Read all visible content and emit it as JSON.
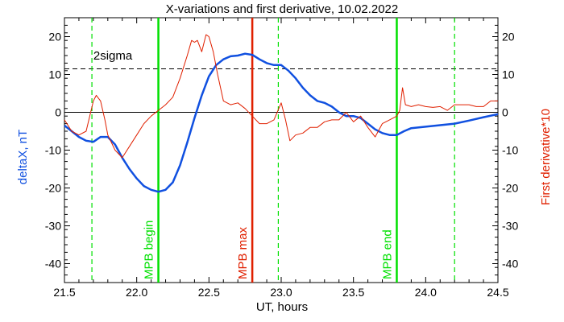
{
  "chart_data": {
    "type": "line",
    "title": "X-variations and first derivative, 10.02.2022",
    "xlabel": "UT, hours",
    "ylabel_left": "deltaX, nT",
    "ylabel_right": "First derivative*10",
    "xlim": [
      21.5,
      24.5
    ],
    "ylim": [
      -45,
      25
    ],
    "x_ticks": [
      21.5,
      22.0,
      22.5,
      23.0,
      23.5,
      24.0,
      24.5
    ],
    "x_tick_labels": [
      "21.5",
      "22.0",
      "22.5",
      "23.0",
      "23.5",
      "24.0",
      "24.5"
    ],
    "y_ticks": [
      20,
      10,
      0,
      -10,
      -20,
      -30,
      -40
    ],
    "y_tick_labels": [
      "20",
      "10",
      "0",
      "-10",
      "-20",
      "-30",
      "-40"
    ],
    "threshold": {
      "value": 11.5,
      "label": "2sigma",
      "label_x": 21.7,
      "label_y": 15
    },
    "vlines": [
      {
        "x": 22.15,
        "label": "MPB begin",
        "color": "#00e000",
        "style": "solid"
      },
      {
        "x": 22.8,
        "label": "MPB max",
        "color": "#e02000",
        "style": "solid"
      },
      {
        "x": 23.8,
        "label": "MPB end",
        "color": "#00e000",
        "style": "solid"
      },
      {
        "x": 21.69,
        "color": "#00e000",
        "style": "dashed"
      },
      {
        "x": 22.98,
        "color": "#00e000",
        "style": "dashed"
      },
      {
        "x": 24.2,
        "color": "#00e000",
        "style": "dashed"
      }
    ],
    "colors": {
      "deltaX": "#1050e0",
      "derivative": "#e02000",
      "axis_right_label": "#e02000",
      "axis_left_label": "#1050e0"
    },
    "series": [
      {
        "key": "deltaX",
        "x": [
          21.5,
          21.55,
          21.6,
          21.65,
          21.7,
          21.75,
          21.8,
          21.85,
          21.9,
          21.95,
          22.0,
          22.05,
          22.1,
          22.15,
          22.2,
          22.25,
          22.3,
          22.35,
          22.4,
          22.45,
          22.5,
          22.55,
          22.6,
          22.65,
          22.7,
          22.75,
          22.8,
          22.85,
          22.9,
          22.95,
          23.0,
          23.05,
          23.1,
          23.15,
          23.2,
          23.25,
          23.3,
          23.35,
          23.4,
          23.45,
          23.5,
          23.55,
          23.6,
          23.65,
          23.7,
          23.75,
          23.8,
          23.85,
          23.9,
          24.0,
          24.1,
          24.2,
          24.3,
          24.4,
          24.5
        ],
        "values": [
          -3.5,
          -5,
          -6.5,
          -7.5,
          -7.8,
          -6.5,
          -6.5,
          -8.5,
          -12,
          -15,
          -17.5,
          -19.5,
          -20.5,
          -21,
          -20.5,
          -18.5,
          -14,
          -8,
          -1.5,
          4.5,
          9.5,
          12.5,
          14,
          14.8,
          15,
          15.5,
          15.2,
          14,
          13,
          12.5,
          12.5,
          11,
          9,
          6.5,
          4.5,
          3,
          2.5,
          1.5,
          0,
          -1,
          -1,
          -1.5,
          -3,
          -4.5,
          -5.5,
          -6,
          -6,
          -5,
          -4.2,
          -3.8,
          -3.4,
          -3,
          -2.2,
          -1.3,
          -0.5
        ]
      },
      {
        "key": "derivative",
        "x": [
          21.5,
          21.55,
          21.6,
          21.65,
          21.7,
          21.72,
          21.75,
          21.78,
          21.8,
          21.85,
          21.9,
          21.95,
          22.0,
          22.05,
          22.1,
          22.15,
          22.2,
          22.25,
          22.3,
          22.35,
          22.38,
          22.4,
          22.42,
          22.45,
          22.48,
          22.5,
          22.53,
          22.56,
          22.6,
          22.65,
          22.7,
          22.75,
          22.8,
          22.85,
          22.9,
          22.95,
          23.0,
          23.03,
          23.06,
          23.1,
          23.15,
          23.2,
          23.25,
          23.3,
          23.35,
          23.4,
          23.45,
          23.5,
          23.55,
          23.6,
          23.65,
          23.7,
          23.75,
          23.8,
          23.82,
          23.84,
          23.86,
          23.9,
          23.95,
          24.0,
          24.05,
          24.1,
          24.15,
          24.2,
          24.25,
          24.3,
          24.35,
          24.4,
          24.45,
          24.5
        ],
        "values": [
          -2,
          -5,
          -6,
          -5,
          3,
          4.5,
          3,
          -2,
          -6,
          -10,
          -12,
          -9,
          -6,
          -3,
          -1,
          0.5,
          2,
          4,
          9,
          15,
          19,
          18.5,
          19,
          16,
          20.5,
          20,
          16,
          10,
          3,
          2,
          2.5,
          1,
          -1,
          -3,
          -3,
          -2,
          2.5,
          -2,
          -7.5,
          -6,
          -5.5,
          -4,
          -4,
          -2.5,
          -2,
          -2,
          0,
          -2.5,
          -1,
          -4,
          -6.5,
          -3,
          -2,
          -1,
          0.5,
          6.5,
          2,
          1.5,
          2,
          1.5,
          1.3,
          1.5,
          0.5,
          2,
          2,
          2,
          1.5,
          1.5,
          3,
          3
        ]
      }
    ]
  }
}
